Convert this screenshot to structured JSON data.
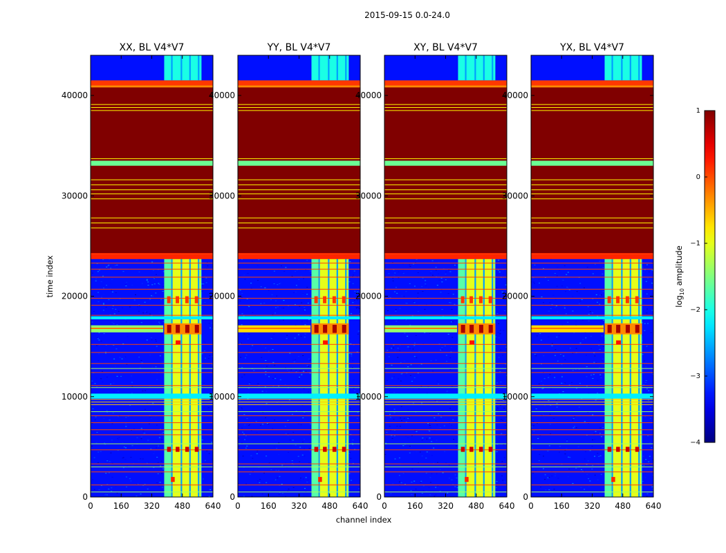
{
  "chart_data": {
    "type": "heatmap",
    "suptitle": "2015-09-15 0.0-24.0",
    "xlabel": "channel index",
    "ylabel": "time index",
    "x_range": [
      0,
      640
    ],
    "y_range": [
      0,
      44000
    ],
    "x_ticks": [
      "0",
      "160",
      "320",
      "480",
      "640"
    ],
    "y_ticks": [
      "0",
      "10000",
      "20000",
      "30000",
      "40000"
    ],
    "x_tick_values": [
      0,
      160,
      320,
      480,
      640
    ],
    "y_tick_values": [
      0,
      10000,
      20000,
      30000,
      40000
    ],
    "colorbar": {
      "label": "log",
      "label_sub": "10",
      "label_suffix": " amplitude",
      "range": [
        -4,
        1
      ],
      "ticks": [
        "1",
        "0",
        "−1",
        "−2",
        "−3",
        "−4"
      ],
      "tick_values": [
        1,
        0,
        -1,
        -2,
        -3,
        -4
      ],
      "colormap": "jet"
    },
    "panels": [
      {
        "title": "XX, BL V4*V7",
        "stronger_band_left": false
      },
      {
        "title": "YY, BL V4*V7",
        "stronger_band_left": true
      },
      {
        "title": "XY, BL V4*V7",
        "stronger_band_left": false
      },
      {
        "title": "YX, BL V4*V7",
        "stronger_band_left": true
      }
    ],
    "regions": {
      "noise_floor_log": -3.3,
      "saturated_time_range": [
        24000,
        41000
      ],
      "saturated_log": 1.0,
      "orange_cap_time_range": [
        41000,
        41500
      ],
      "orange_cap_log": 0.1,
      "green_band_time_range": [
        33000,
        33500
      ],
      "green_band_log": -1.6,
      "active_channel_range": [
        385,
        580
      ],
      "channel_gaps": [
        425,
        475,
        520,
        565
      ],
      "strong_signal_time_range": [
        16200,
        17300
      ],
      "strong_signal_log": 0.8,
      "yellow_line_times": [
        26800,
        27300,
        27800,
        29700,
        30200,
        30600,
        31100,
        31600,
        33700,
        38500,
        38800,
        39100
      ],
      "orange_line_times": [
        1200,
        2500,
        3300,
        4700,
        6200,
        6700,
        7400,
        8100,
        11100,
        12400,
        13300,
        14400,
        15200,
        18100,
        19100,
        19800,
        20700,
        21900,
        22700,
        23300,
        24200
      ],
      "orange_cluster_time_range": [
        9200,
        10300
      ]
    }
  }
}
